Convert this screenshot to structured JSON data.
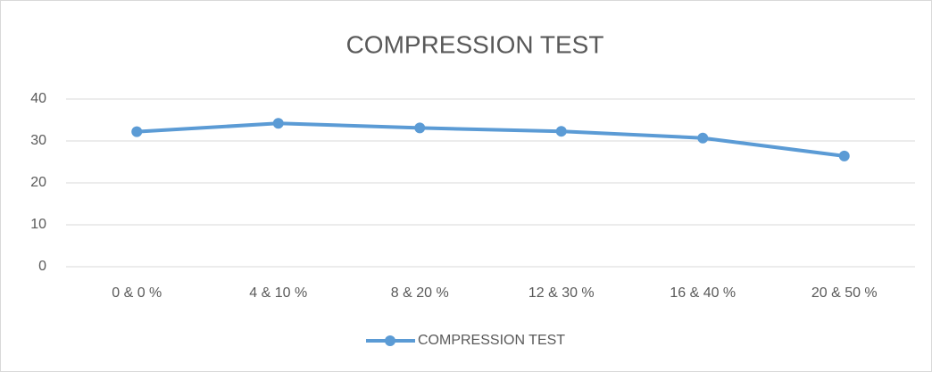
{
  "chart_data": {
    "type": "line",
    "title": "COMPRESSION TEST",
    "categories": [
      "0 & 0 %",
      "4 & 10 %",
      "8 & 20 %",
      "12 & 30 %",
      "16 & 40 %",
      "20 & 50 %"
    ],
    "series": [
      {
        "name": "COMPRESSION TEST",
        "color": "#5b9bd5",
        "values": [
          32.2,
          34.2,
          33.1,
          32.3,
          30.7,
          26.4
        ]
      }
    ],
    "ylim": [
      0,
      40
    ],
    "yticks": [
      0,
      10,
      20,
      30,
      40
    ],
    "grid": true,
    "legend": "bottom"
  }
}
